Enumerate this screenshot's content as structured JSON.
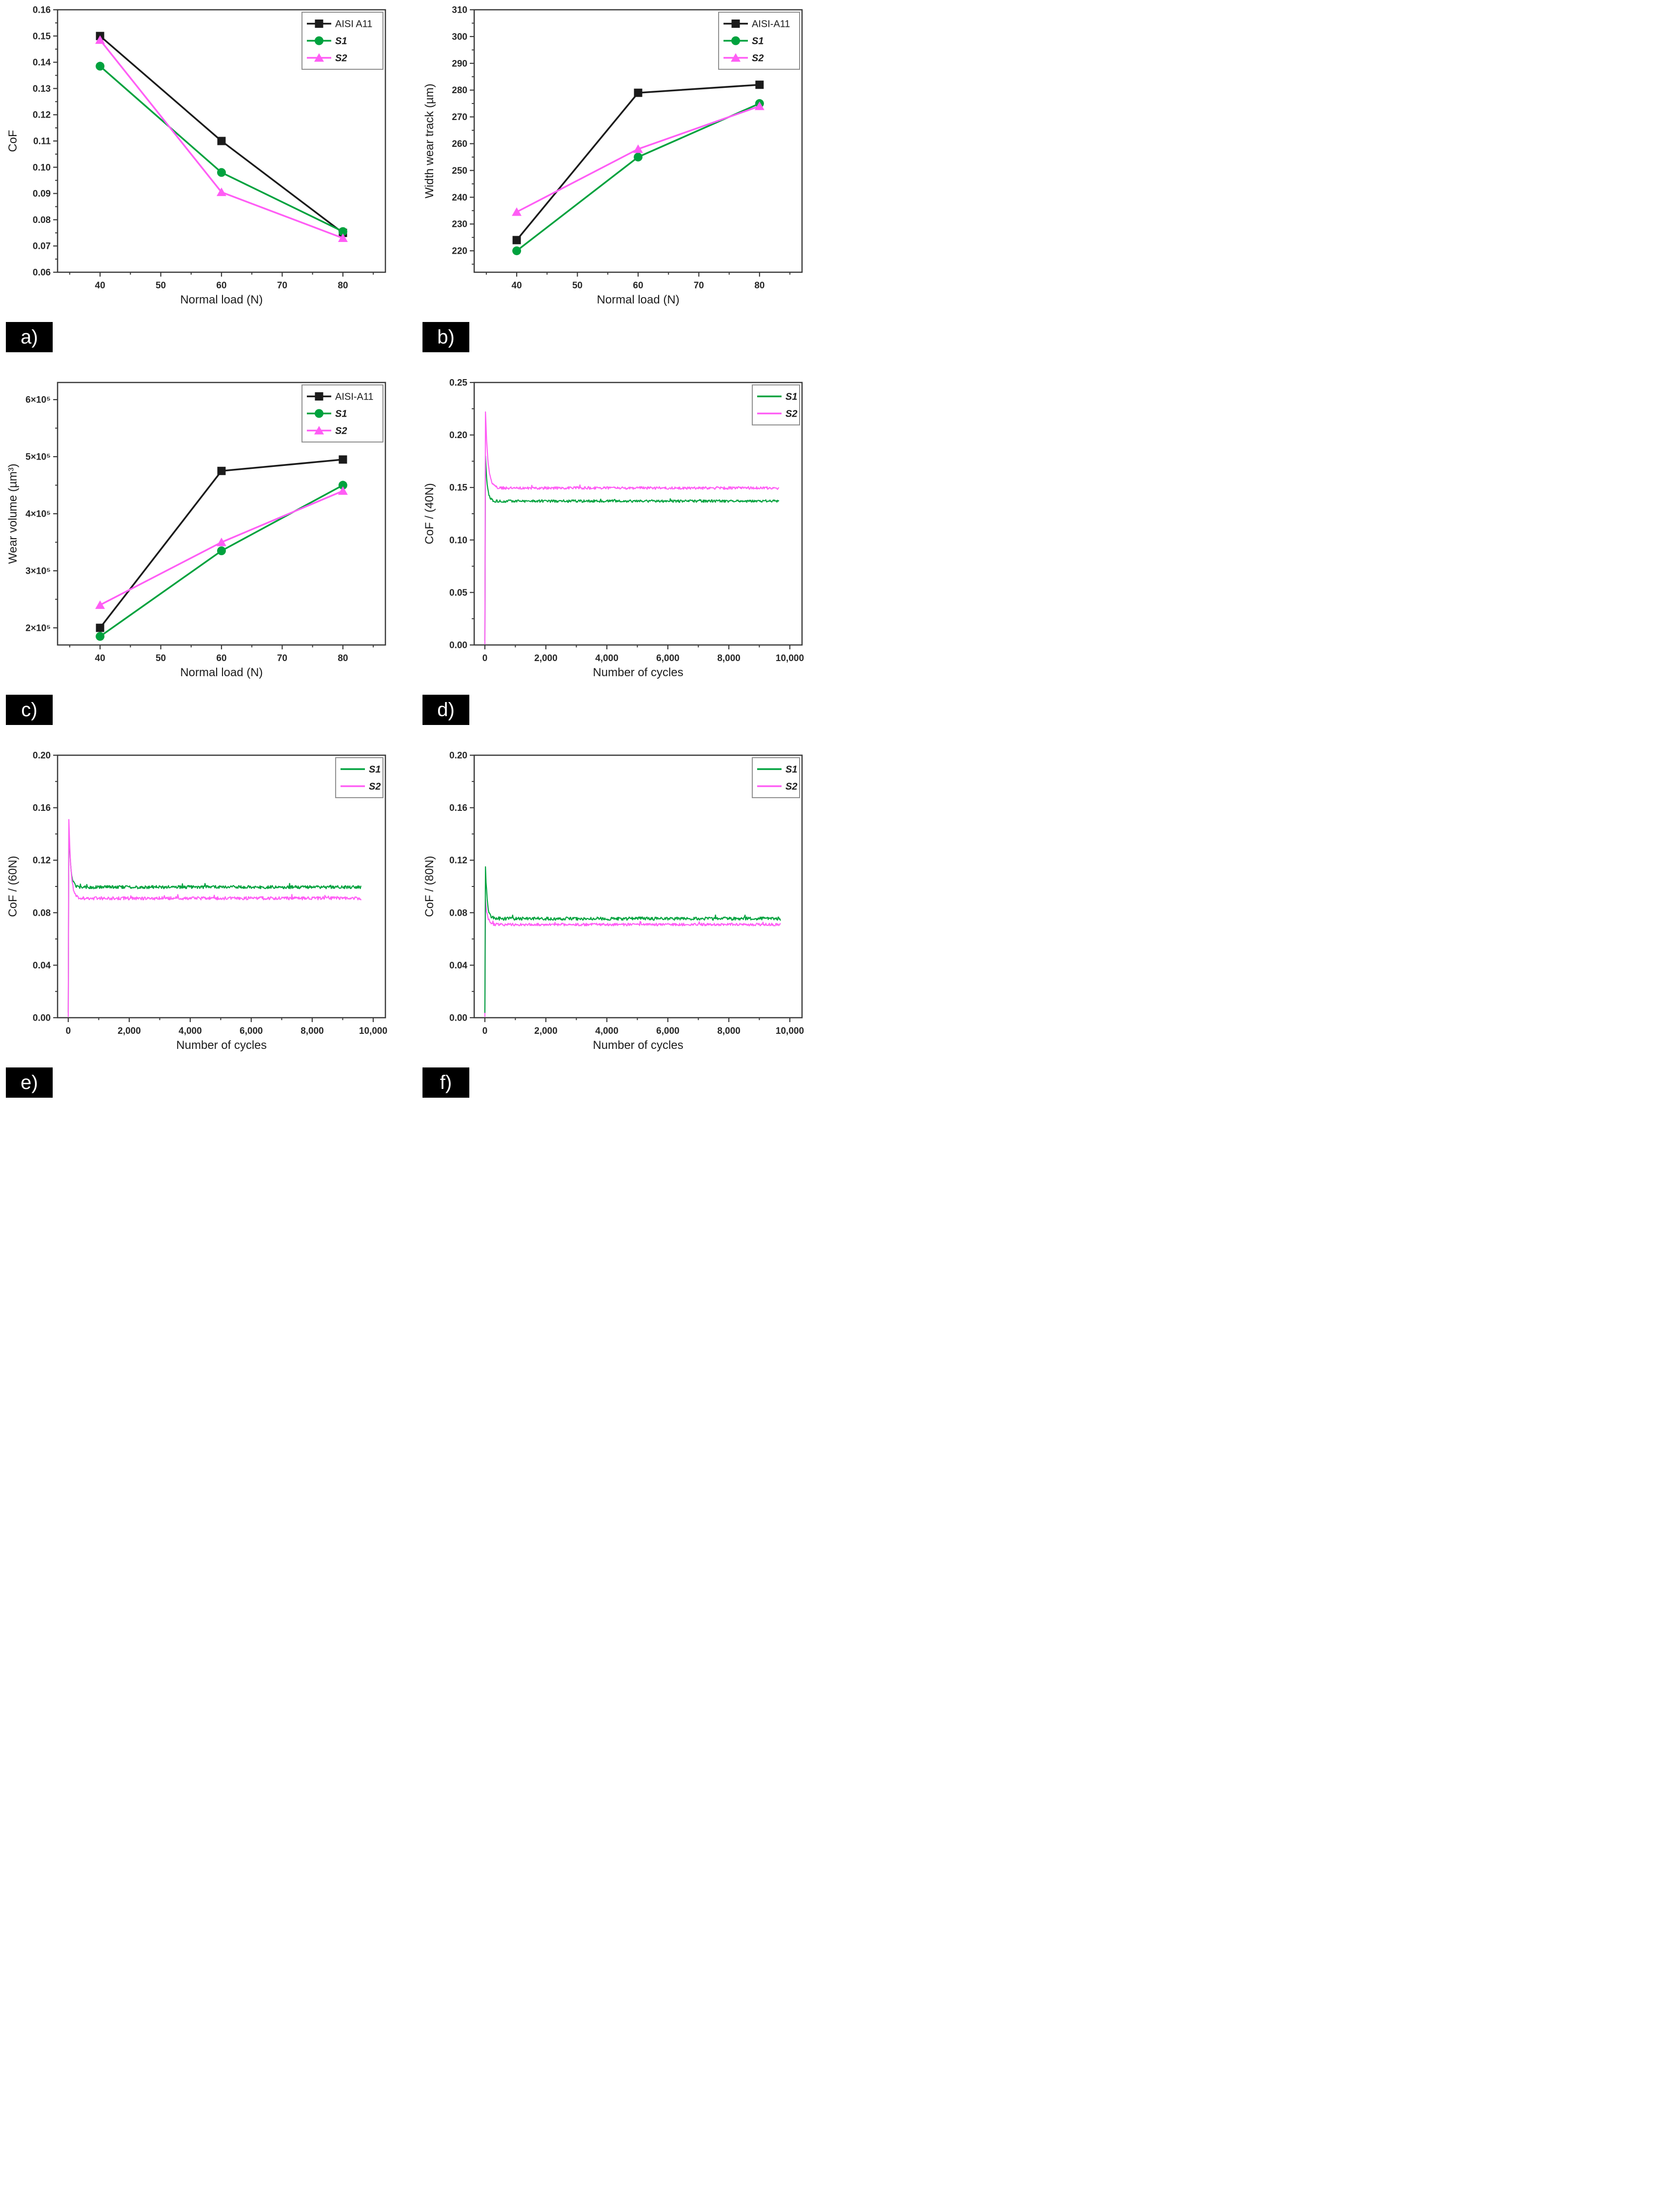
{
  "figure": {
    "panels": [
      {
        "label": "a)"
      },
      {
        "label": "b)"
      },
      {
        "label": "c)"
      },
      {
        "label": "d)"
      },
      {
        "label": "e)"
      },
      {
        "label": "f)"
      }
    ]
  },
  "colors": {
    "aisi_black": "#1b1b1b",
    "s1_green": "#00a23e",
    "s2_magenta": "#ff5df5",
    "axis": "#3a3a3a",
    "tick_text": "#262626",
    "title_text": "#1c1c1c",
    "legend_border": "#8f8f8f",
    "panel_label_bg": "#000000",
    "panel_label_text": "#ffffff"
  },
  "chart_data": [
    {
      "type": "line",
      "panel": "a",
      "xlabel": "Normal load (N)",
      "ylabel": "CoF",
      "xlim": [
        33,
        87
      ],
      "ylim": [
        0.06,
        0.16
      ],
      "xticks": [
        40,
        50,
        60,
        70,
        80
      ],
      "xtick_labels": [
        "40",
        "50",
        "60",
        "70",
        "80"
      ],
      "yticks": [
        0.06,
        0.07,
        0.08,
        0.09,
        0.1,
        0.11,
        0.12,
        0.13,
        0.14,
        0.15,
        0.16
      ],
      "ytick_labels": [
        "0.06",
        "0.07",
        "0.08",
        "0.09",
        "0.10",
        "0.11",
        "0.12",
        "0.13",
        "0.14",
        "0.15",
        "0.16"
      ],
      "grid": false,
      "legend_position": "top-right",
      "series": [
        {
          "name": "AISI A11",
          "italic": false,
          "color": "#1b1b1b",
          "marker": "square",
          "points": [
            [
              40,
              0.15
            ],
            [
              60,
              0.11
            ],
            [
              80,
              0.075
            ]
          ]
        },
        {
          "name": "S1",
          "italic": true,
          "color": "#00a23e",
          "marker": "circle",
          "points": [
            [
              40,
              0.1385
            ],
            [
              60,
              0.098
            ],
            [
              80,
              0.0755
            ]
          ]
        },
        {
          "name": "S2",
          "italic": true,
          "color": "#ff5df5",
          "marker": "triangle",
          "points": [
            [
              40,
              0.1485
            ],
            [
              60,
              0.0905
            ],
            [
              80,
              0.073
            ]
          ]
        }
      ]
    },
    {
      "type": "line",
      "panel": "b",
      "xlabel": "Normal load (N)",
      "ylabel": "Width wear track (µm)",
      "xlim": [
        33,
        87
      ],
      "ylim": [
        212,
        310
      ],
      "xticks": [
        40,
        50,
        60,
        70,
        80
      ],
      "xtick_labels": [
        "40",
        "50",
        "60",
        "70",
        "80"
      ],
      "yticks": [
        220,
        230,
        240,
        250,
        260,
        270,
        280,
        290,
        300,
        310
      ],
      "ytick_labels": [
        "220",
        "230",
        "240",
        "250",
        "260",
        "270",
        "280",
        "290",
        "300",
        "310"
      ],
      "grid": false,
      "legend_position": "top-right",
      "series": [
        {
          "name": "AISI-A11",
          "italic": false,
          "color": "#1b1b1b",
          "marker": "square",
          "points": [
            [
              40,
              224
            ],
            [
              60,
              279
            ],
            [
              80,
              282
            ]
          ]
        },
        {
          "name": "S1",
          "italic": true,
          "color": "#00a23e",
          "marker": "circle",
          "points": [
            [
              40,
              220
            ],
            [
              60,
              255
            ],
            [
              80,
              275
            ]
          ]
        },
        {
          "name": "S2",
          "italic": true,
          "color": "#ff5df5",
          "marker": "triangle",
          "points": [
            [
              40,
              234.5
            ],
            [
              60,
              258
            ],
            [
              80,
              274
            ]
          ]
        }
      ]
    },
    {
      "type": "line",
      "panel": "c",
      "xlabel": "Normal load (N)",
      "ylabel": "Wear volume (µm³)",
      "xlim": [
        33,
        87
      ],
      "ylim": [
        170000,
        630000
      ],
      "xticks": [
        40,
        50,
        60,
        70,
        80
      ],
      "xtick_labels": [
        "40",
        "50",
        "60",
        "70",
        "80"
      ],
      "yticks": [
        200000,
        300000,
        400000,
        500000,
        600000
      ],
      "ytick_labels": [
        "2×10⁵",
        "3×10⁵",
        "4×10⁵",
        "5×10⁵",
        "6×10⁵"
      ],
      "grid": false,
      "legend_position": "top-right",
      "series": [
        {
          "name": "AISI-A11",
          "italic": false,
          "color": "#1b1b1b",
          "marker": "square",
          "points": [
            [
              40,
              200000
            ],
            [
              60,
              475000
            ],
            [
              80,
              495000
            ]
          ]
        },
        {
          "name": "S1",
          "italic": true,
          "color": "#00a23e",
          "marker": "circle",
          "points": [
            [
              40,
              185000
            ],
            [
              60,
              335000
            ],
            [
              80,
              450000
            ]
          ]
        },
        {
          "name": "S2",
          "italic": true,
          "color": "#ff5df5",
          "marker": "triangle",
          "points": [
            [
              40,
              240000
            ],
            [
              60,
              350000
            ],
            [
              80,
              440000
            ]
          ]
        }
      ]
    },
    {
      "type": "line",
      "panel": "d",
      "xlabel": "Number of cycles",
      "ylabel": "CoF / (40N)",
      "xlim": [
        -350,
        10400
      ],
      "ylim": [
        0,
        0.25
      ],
      "xticks": [
        0,
        2000,
        4000,
        6000,
        8000,
        10000
      ],
      "xtick_labels": [
        "0",
        "2,000",
        "4,000",
        "6,000",
        "8,000",
        "10,000"
      ],
      "yticks": [
        0.0,
        0.05,
        0.1,
        0.15,
        0.2,
        0.25
      ],
      "ytick_labels": [
        "0.00",
        "0.05",
        "0.10",
        "0.15",
        "0.20",
        "0.25"
      ],
      "grid": false,
      "legend_position": "top-right",
      "series": [
        {
          "name": "S1",
          "italic": true,
          "color": "#00a23e",
          "profile": {
            "start": 0.004,
            "spike": 0.18,
            "steady": 0.137,
            "tau": 60,
            "noise": 0.0012,
            "end": 9650
          }
        },
        {
          "name": "S2",
          "italic": true,
          "color": "#ff5df5",
          "profile": {
            "start": 0.001,
            "spike": 0.222,
            "steady": 0.1495,
            "tau": 80,
            "noise": 0.0013,
            "end": 9650
          }
        }
      ]
    },
    {
      "type": "line",
      "panel": "e",
      "xlabel": "Number of cycles",
      "ylabel": "CoF / (60N)",
      "xlim": [
        -350,
        10400
      ],
      "ylim": [
        0,
        0.2
      ],
      "xticks": [
        0,
        2000,
        4000,
        6000,
        8000,
        10000
      ],
      "xtick_labels": [
        "0",
        "2,000",
        "4,000",
        "6,000",
        "8,000",
        "10,000"
      ],
      "yticks": [
        0.0,
        0.04,
        0.08,
        0.12,
        0.16,
        0.2
      ],
      "ytick_labels": [
        "0.00",
        "0.04",
        "0.08",
        "0.12",
        "0.16",
        "0.20"
      ],
      "grid": false,
      "legend_position": "top-right",
      "series": [
        {
          "name": "S1",
          "italic": true,
          "color": "#00a23e",
          "profile": {
            "start": 0.004,
            "spike": 0.145,
            "steady": 0.0995,
            "tau": 60,
            "noise": 0.0012,
            "end": 9600
          }
        },
        {
          "name": "S2",
          "italic": true,
          "color": "#ff5df5",
          "profile": {
            "start": 0.001,
            "spike": 0.151,
            "steady": 0.091,
            "tau": 70,
            "noise": 0.0012,
            "end": 9600
          }
        }
      ]
    },
    {
      "type": "line",
      "panel": "f",
      "xlabel": "Number of cycles",
      "ylabel": "CoF / (80N)",
      "xlim": [
        -350,
        10400
      ],
      "ylim": [
        0,
        0.2
      ],
      "xticks": [
        0,
        2000,
        4000,
        6000,
        8000,
        10000
      ],
      "xtick_labels": [
        "0",
        "2,000",
        "4,000",
        "6,000",
        "8,000",
        "10,000"
      ],
      "yticks": [
        0.0,
        0.04,
        0.08,
        0.12,
        0.16,
        0.2
      ],
      "ytick_labels": [
        "0.00",
        "0.04",
        "0.08",
        "0.12",
        "0.16",
        "0.20"
      ],
      "grid": false,
      "legend_position": "top-right",
      "legend_order": [
        1,
        0
      ],
      "series": [
        {
          "name": "S2",
          "italic": true,
          "color": "#ff5df5",
          "profile": {
            "start": 0.001,
            "spike": 0.09,
            "steady": 0.071,
            "tau": 60,
            "noise": 0.001,
            "end": 9700
          }
        },
        {
          "name": "S1",
          "italic": true,
          "color": "#00a23e",
          "profile": {
            "start": 0.004,
            "spike": 0.115,
            "steady": 0.0755,
            "tau": 55,
            "noise": 0.0012,
            "end": 9700
          }
        }
      ]
    }
  ]
}
